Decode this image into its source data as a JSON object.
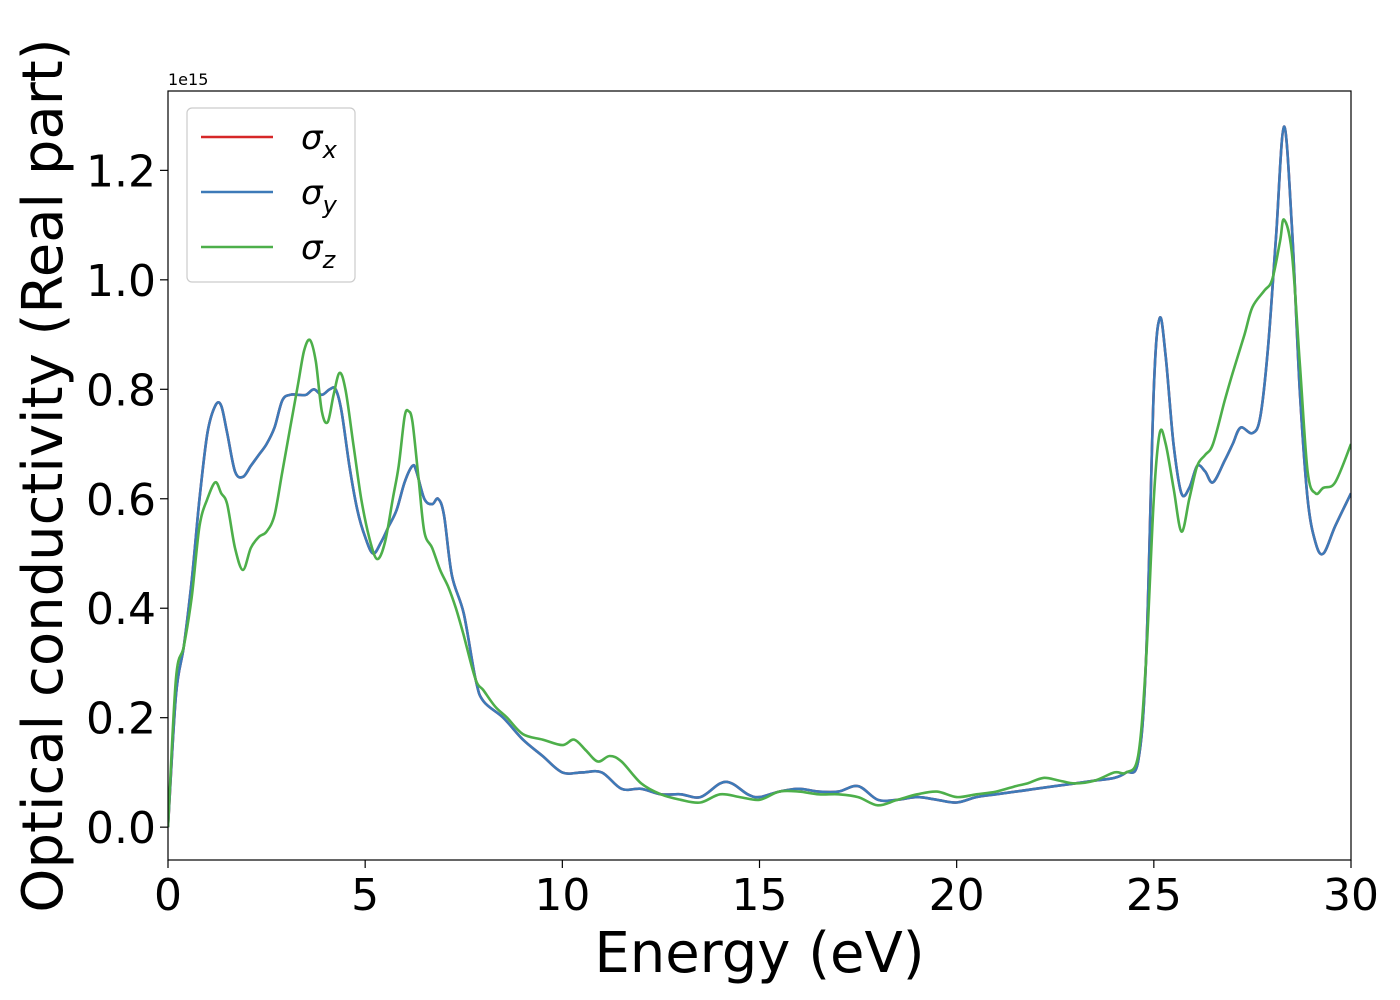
{
  "chart_data": {
    "type": "line",
    "xlabel": "Energy (eV)",
    "ylabel": "Optical conductivity (Real part)",
    "offset_text": "1e15",
    "xlim": [
      0,
      30
    ],
    "ylim": [
      -0.06,
      1.345
    ],
    "x_ticks": [
      0,
      5,
      10,
      15,
      20,
      25,
      30
    ],
    "x_tick_labels": [
      "0",
      "5",
      "10",
      "15",
      "20",
      "25",
      "30"
    ],
    "y_ticks": [
      0.0,
      0.2,
      0.4,
      0.6,
      0.8,
      1.0,
      1.2
    ],
    "y_tick_labels": [
      "0.0",
      "0.2",
      "0.4",
      "0.6",
      "0.8",
      "1.0",
      "1.2"
    ],
    "grid": false,
    "legend_position": "upper-left",
    "series": [
      {
        "name": "σx",
        "name_base": "σ",
        "name_sub": "x",
        "color": "#d62728",
        "x": [
          0,
          0.2,
          0.4,
          0.6,
          0.8,
          1.0,
          1.2,
          1.35,
          1.5,
          1.7,
          1.9,
          2.1,
          2.3,
          2.5,
          2.7,
          2.9,
          3.1,
          3.3,
          3.5,
          3.7,
          3.9,
          4.1,
          4.25,
          4.4,
          4.6,
          4.8,
          5.0,
          5.2,
          5.4,
          5.6,
          5.8,
          6.0,
          6.2,
          6.3,
          6.5,
          6.7,
          6.85,
          7.0,
          7.2,
          7.5,
          7.8,
          8.0,
          8.5,
          9.0,
          9.5,
          10.0,
          10.5,
          11.0,
          11.5,
          12.0,
          12.5,
          13.0,
          13.5,
          14.0,
          14.3,
          14.7,
          15.0,
          15.5,
          16.0,
          16.5,
          17.0,
          17.5,
          18.0,
          18.5,
          19.0,
          19.5,
          20.0,
          20.5,
          21.0,
          21.5,
          22.0,
          22.5,
          23.0,
          23.5,
          24.0,
          24.3,
          24.6,
          24.8,
          25.0,
          25.15,
          25.3,
          25.5,
          25.7,
          25.9,
          26.1,
          26.3,
          26.5,
          26.8,
          27.0,
          27.2,
          27.5,
          27.7,
          27.9,
          28.1,
          28.3,
          28.5,
          28.7,
          28.9,
          29.1,
          29.3,
          29.6,
          30.0
        ],
        "y": [
          0.0,
          0.24,
          0.33,
          0.45,
          0.6,
          0.72,
          0.77,
          0.77,
          0.72,
          0.65,
          0.64,
          0.66,
          0.68,
          0.7,
          0.73,
          0.78,
          0.79,
          0.79,
          0.79,
          0.8,
          0.79,
          0.8,
          0.8,
          0.76,
          0.66,
          0.58,
          0.53,
          0.5,
          0.52,
          0.55,
          0.58,
          0.63,
          0.66,
          0.65,
          0.6,
          0.59,
          0.6,
          0.57,
          0.46,
          0.39,
          0.27,
          0.23,
          0.2,
          0.16,
          0.13,
          0.1,
          0.1,
          0.1,
          0.07,
          0.07,
          0.06,
          0.06,
          0.055,
          0.08,
          0.08,
          0.06,
          0.055,
          0.065,
          0.07,
          0.065,
          0.065,
          0.075,
          0.05,
          0.05,
          0.055,
          0.05,
          0.045,
          0.055,
          0.06,
          0.065,
          0.07,
          0.075,
          0.08,
          0.085,
          0.09,
          0.1,
          0.12,
          0.3,
          0.8,
          0.93,
          0.86,
          0.7,
          0.61,
          0.62,
          0.66,
          0.65,
          0.63,
          0.67,
          0.7,
          0.73,
          0.72,
          0.75,
          0.88,
          1.08,
          1.28,
          1.1,
          0.8,
          0.6,
          0.52,
          0.5,
          0.55,
          0.61
        ]
      },
      {
        "name": "σy",
        "name_base": "σ",
        "name_sub": "y",
        "color": "#3d7ab8",
        "x": [
          0,
          0.2,
          0.4,
          0.6,
          0.8,
          1.0,
          1.2,
          1.35,
          1.5,
          1.7,
          1.9,
          2.1,
          2.3,
          2.5,
          2.7,
          2.9,
          3.1,
          3.3,
          3.5,
          3.7,
          3.9,
          4.1,
          4.25,
          4.4,
          4.6,
          4.8,
          5.0,
          5.2,
          5.4,
          5.6,
          5.8,
          6.0,
          6.2,
          6.3,
          6.5,
          6.7,
          6.85,
          7.0,
          7.2,
          7.5,
          7.8,
          8.0,
          8.5,
          9.0,
          9.5,
          10.0,
          10.5,
          11.0,
          11.5,
          12.0,
          12.5,
          13.0,
          13.5,
          14.0,
          14.3,
          14.7,
          15.0,
          15.5,
          16.0,
          16.5,
          17.0,
          17.5,
          18.0,
          18.5,
          19.0,
          19.5,
          20.0,
          20.5,
          21.0,
          21.5,
          22.0,
          22.5,
          23.0,
          23.5,
          24.0,
          24.3,
          24.6,
          24.8,
          25.0,
          25.15,
          25.3,
          25.5,
          25.7,
          25.9,
          26.1,
          26.3,
          26.5,
          26.8,
          27.0,
          27.2,
          27.5,
          27.7,
          27.9,
          28.1,
          28.3,
          28.5,
          28.7,
          28.9,
          29.1,
          29.3,
          29.6,
          30.0
        ],
        "y": [
          0.0,
          0.24,
          0.33,
          0.45,
          0.6,
          0.72,
          0.77,
          0.77,
          0.72,
          0.65,
          0.64,
          0.66,
          0.68,
          0.7,
          0.73,
          0.78,
          0.79,
          0.79,
          0.79,
          0.8,
          0.79,
          0.8,
          0.8,
          0.76,
          0.66,
          0.58,
          0.53,
          0.5,
          0.52,
          0.55,
          0.58,
          0.63,
          0.66,
          0.65,
          0.6,
          0.59,
          0.6,
          0.57,
          0.46,
          0.39,
          0.27,
          0.23,
          0.2,
          0.16,
          0.13,
          0.1,
          0.1,
          0.1,
          0.07,
          0.07,
          0.06,
          0.06,
          0.055,
          0.08,
          0.08,
          0.06,
          0.055,
          0.065,
          0.07,
          0.065,
          0.065,
          0.075,
          0.05,
          0.05,
          0.055,
          0.05,
          0.045,
          0.055,
          0.06,
          0.065,
          0.07,
          0.075,
          0.08,
          0.085,
          0.09,
          0.1,
          0.12,
          0.3,
          0.8,
          0.93,
          0.86,
          0.7,
          0.61,
          0.62,
          0.66,
          0.65,
          0.63,
          0.67,
          0.7,
          0.73,
          0.72,
          0.75,
          0.88,
          1.08,
          1.28,
          1.1,
          0.8,
          0.6,
          0.52,
          0.5,
          0.55,
          0.61
        ]
      },
      {
        "name": "σz",
        "name_base": "σ",
        "name_sub": "z",
        "color": "#4daf4a",
        "x": [
          0,
          0.2,
          0.4,
          0.6,
          0.8,
          1.0,
          1.2,
          1.35,
          1.5,
          1.7,
          1.9,
          2.1,
          2.3,
          2.5,
          2.7,
          2.9,
          3.1,
          3.3,
          3.45,
          3.6,
          3.75,
          3.9,
          4.05,
          4.2,
          4.35,
          4.5,
          4.7,
          4.9,
          5.1,
          5.3,
          5.5,
          5.7,
          5.85,
          6.0,
          6.1,
          6.2,
          6.35,
          6.5,
          6.7,
          6.9,
          7.1,
          7.3,
          7.5,
          7.8,
          8.0,
          8.3,
          8.6,
          9.0,
          9.5,
          10.0,
          10.3,
          10.6,
          10.9,
          11.2,
          11.5,
          12.0,
          12.5,
          13.0,
          13.5,
          14.0,
          14.5,
          15.0,
          15.5,
          16.0,
          16.5,
          17.0,
          17.5,
          18.0,
          18.5,
          19.0,
          19.5,
          20.0,
          20.5,
          21.0,
          21.5,
          21.8,
          22.2,
          22.6,
          23.0,
          23.5,
          24.0,
          24.3,
          24.6,
          24.8,
          25.0,
          25.15,
          25.3,
          25.5,
          25.7,
          25.9,
          26.1,
          26.3,
          26.5,
          26.8,
          27.0,
          27.3,
          27.5,
          27.8,
          28.0,
          28.2,
          28.3,
          28.5,
          28.7,
          28.9,
          29.1,
          29.3,
          29.6,
          30.0
        ],
        "y": [
          0.0,
          0.27,
          0.33,
          0.42,
          0.55,
          0.6,
          0.63,
          0.61,
          0.59,
          0.51,
          0.47,
          0.51,
          0.53,
          0.54,
          0.57,
          0.65,
          0.73,
          0.81,
          0.87,
          0.89,
          0.85,
          0.76,
          0.74,
          0.79,
          0.83,
          0.8,
          0.7,
          0.6,
          0.53,
          0.49,
          0.52,
          0.6,
          0.66,
          0.75,
          0.76,
          0.74,
          0.64,
          0.54,
          0.51,
          0.47,
          0.44,
          0.4,
          0.35,
          0.27,
          0.25,
          0.22,
          0.2,
          0.17,
          0.16,
          0.15,
          0.16,
          0.14,
          0.12,
          0.13,
          0.12,
          0.08,
          0.06,
          0.05,
          0.045,
          0.06,
          0.055,
          0.05,
          0.065,
          0.065,
          0.06,
          0.06,
          0.055,
          0.04,
          0.05,
          0.06,
          0.065,
          0.055,
          0.06,
          0.065,
          0.075,
          0.08,
          0.09,
          0.085,
          0.08,
          0.085,
          0.1,
          0.1,
          0.13,
          0.3,
          0.6,
          0.72,
          0.7,
          0.62,
          0.54,
          0.6,
          0.66,
          0.68,
          0.7,
          0.78,
          0.83,
          0.9,
          0.95,
          0.98,
          1.0,
          1.07,
          1.11,
          1.05,
          0.85,
          0.65,
          0.61,
          0.62,
          0.63,
          0.7
        ]
      }
    ]
  }
}
